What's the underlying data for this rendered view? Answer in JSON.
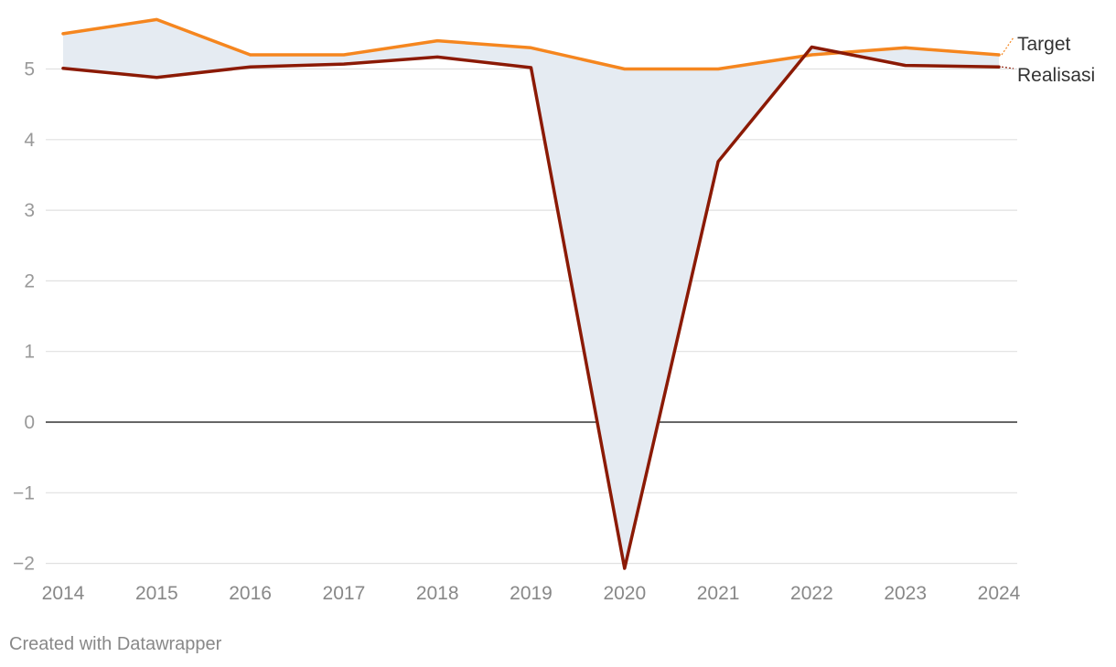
{
  "chart_data": {
    "type": "line",
    "x": [
      "2014",
      "2015",
      "2016",
      "2017",
      "2018",
      "2019",
      "2020",
      "2021",
      "2022",
      "2023",
      "2024"
    ],
    "series": [
      {
        "name": "Target",
        "values": [
          5.5,
          5.7,
          5.2,
          5.2,
          5.4,
          5.3,
          5.0,
          5.0,
          5.2,
          5.3,
          5.2
        ],
        "color": "#f5861f"
      },
      {
        "name": "Realisasi",
        "values": [
          5.01,
          4.88,
          5.03,
          5.07,
          5.17,
          5.02,
          -2.07,
          3.69,
          5.31,
          5.05,
          5.03
        ],
        "color": "#8b1a05"
      }
    ],
    "area_between_series_color": "#e5ebf2",
    "ylim": [
      -2,
      5.7
    ],
    "yticks": [
      -2,
      -1,
      0,
      1,
      2,
      3,
      4,
      5
    ],
    "ytick_labels": [
      "−2",
      "−1",
      "0",
      "1",
      "2",
      "3",
      "4",
      "5"
    ],
    "grid": true,
    "legend": "right, at line ends"
  },
  "credit": "Created with Datawrapper"
}
